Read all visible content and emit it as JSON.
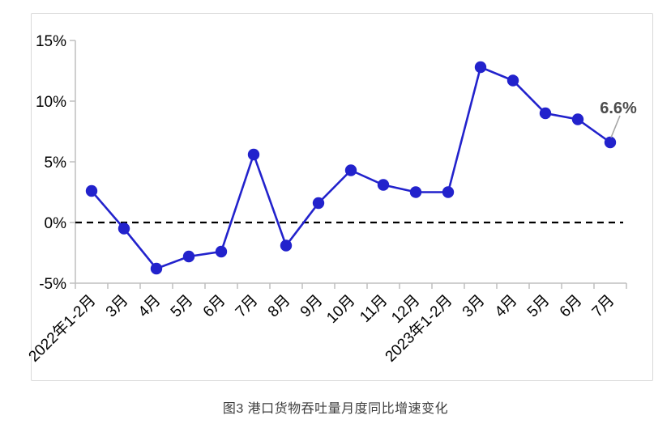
{
  "page": {
    "caption": "图3 港口货物吞吐量月度同比增速变化"
  },
  "chart_data": {
    "type": "line",
    "title": "图3 港口货物吞吐量月度同比增速变化",
    "categories": [
      "2022年1-2月",
      "3月",
      "4月",
      "5月",
      "6月",
      "7月",
      "8月",
      "9月",
      "10月",
      "11月",
      "12月",
      "2023年1-2月",
      "3月",
      "4月",
      "5月",
      "6月",
      "7月"
    ],
    "values": [
      2.6,
      -0.5,
      -3.8,
      -2.8,
      -2.4,
      5.6,
      -1.9,
      1.6,
      4.3,
      3.1,
      2.5,
      2.5,
      12.8,
      11.7,
      9.0,
      8.5,
      6.6
    ],
    "ylim": [
      -5,
      15
    ],
    "y_ticks": [
      {
        "value": 15,
        "label": "15%"
      },
      {
        "value": 10,
        "label": "10%"
      },
      {
        "value": 5,
        "label": "5%"
      },
      {
        "value": 0,
        "label": "0%"
      },
      {
        "value": -5,
        "label": "-5%"
      }
    ],
    "xlabel": "",
    "ylabel": "",
    "grid": false,
    "legend": "none",
    "zero_line": {
      "style": "dashed",
      "color": "#000000"
    },
    "end_label": {
      "text": "6.6%",
      "color": "#4d4d4d",
      "leader_color": "#a6a6a6"
    },
    "colors": {
      "line": "#2222cc",
      "marker": "#2222cc",
      "axis": "#bfbfbf",
      "tick_label": "#000000",
      "frame_border": "#d9d9d9"
    }
  }
}
